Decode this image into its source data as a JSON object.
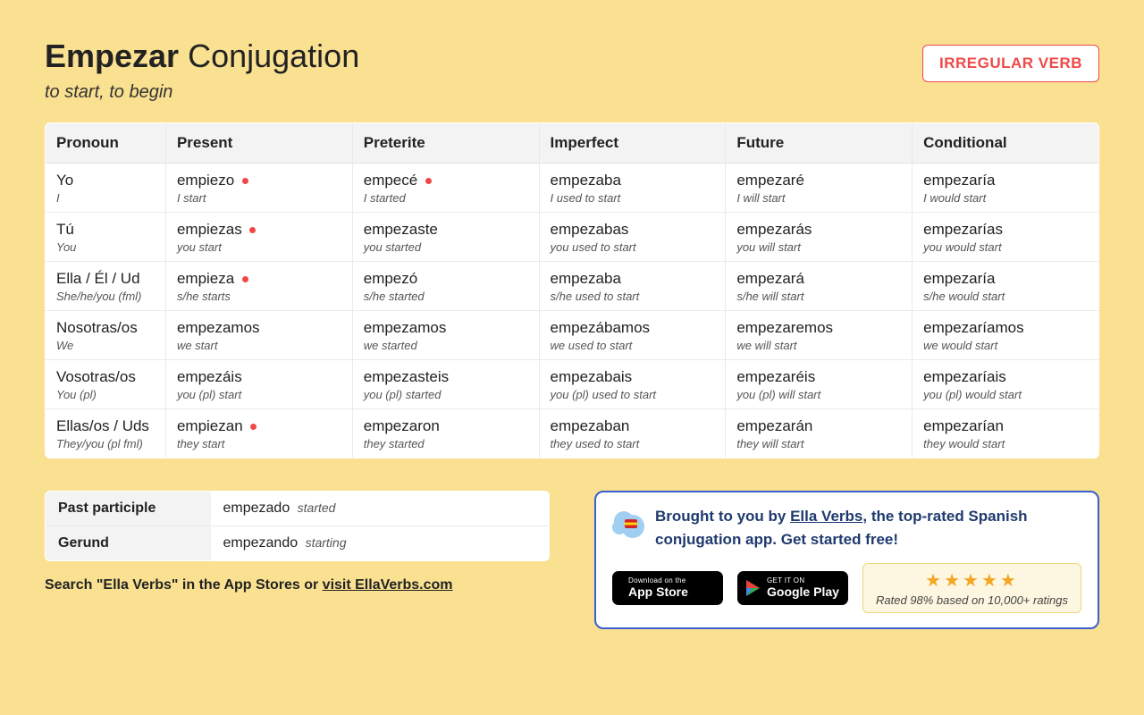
{
  "header": {
    "title_bold": "Empezar",
    "title_rest": " Conjugation",
    "subtitle": "to start, to begin",
    "badge": "IRREGULAR VERB"
  },
  "columns": [
    "Pronoun",
    "Present",
    "Preterite",
    "Imperfect",
    "Future",
    "Conditional"
  ],
  "rows": [
    {
      "pronoun": {
        "form": "Yo",
        "gloss": "I"
      },
      "cells": [
        {
          "form": "empiezo",
          "gloss": "I start",
          "irr": true
        },
        {
          "form": "empecé",
          "gloss": "I started",
          "irr": true
        },
        {
          "form": "empezaba",
          "gloss": "I used to start",
          "irr": false
        },
        {
          "form": "empezaré",
          "gloss": "I will start",
          "irr": false
        },
        {
          "form": "empezaría",
          "gloss": "I would start",
          "irr": false
        }
      ]
    },
    {
      "pronoun": {
        "form": "Tú",
        "gloss": "You"
      },
      "cells": [
        {
          "form": "empiezas",
          "gloss": "you start",
          "irr": true
        },
        {
          "form": "empezaste",
          "gloss": "you started",
          "irr": false
        },
        {
          "form": "empezabas",
          "gloss": "you used to start",
          "irr": false
        },
        {
          "form": "empezarás",
          "gloss": "you will start",
          "irr": false
        },
        {
          "form": "empezarías",
          "gloss": "you would start",
          "irr": false
        }
      ]
    },
    {
      "pronoun": {
        "form": "Ella / Él / Ud",
        "gloss": "She/he/you (fml)"
      },
      "cells": [
        {
          "form": "empieza",
          "gloss": "s/he starts",
          "irr": true
        },
        {
          "form": "empezó",
          "gloss": "s/he started",
          "irr": false
        },
        {
          "form": "empezaba",
          "gloss": "s/he used to start",
          "irr": false
        },
        {
          "form": "empezará",
          "gloss": "s/he will start",
          "irr": false
        },
        {
          "form": "empezaría",
          "gloss": "s/he would start",
          "irr": false
        }
      ]
    },
    {
      "pronoun": {
        "form": "Nosotras/os",
        "gloss": "We"
      },
      "cells": [
        {
          "form": "empezamos",
          "gloss": "we start",
          "irr": false
        },
        {
          "form": "empezamos",
          "gloss": "we started",
          "irr": false
        },
        {
          "form": "empezábamos",
          "gloss": "we used to start",
          "irr": false
        },
        {
          "form": "empezaremos",
          "gloss": "we will start",
          "irr": false
        },
        {
          "form": "empezaríamos",
          "gloss": "we would start",
          "irr": false
        }
      ]
    },
    {
      "pronoun": {
        "form": "Vosotras/os",
        "gloss": "You (pl)"
      },
      "cells": [
        {
          "form": "empezáis",
          "gloss": "you (pl) start",
          "irr": false
        },
        {
          "form": "empezasteis",
          "gloss": "you (pl) started",
          "irr": false
        },
        {
          "form": "empezabais",
          "gloss": "you (pl) used to start",
          "irr": false
        },
        {
          "form": "empezaréis",
          "gloss": "you (pl) will start",
          "irr": false
        },
        {
          "form": "empezaríais",
          "gloss": "you (pl) would start",
          "irr": false
        }
      ]
    },
    {
      "pronoun": {
        "form": "Ellas/os / Uds",
        "gloss": "They/you (pl fml)"
      },
      "cells": [
        {
          "form": "empiezan",
          "gloss": "they start",
          "irr": true
        },
        {
          "form": "empezaron",
          "gloss": "they started",
          "irr": false
        },
        {
          "form": "empezaban",
          "gloss": "they used to start",
          "irr": false
        },
        {
          "form": "empezarán",
          "gloss": "they will start",
          "irr": false
        },
        {
          "form": "empezarían",
          "gloss": "they would start",
          "irr": false
        }
      ]
    }
  ],
  "forms": {
    "past_participle": {
      "label": "Past participle",
      "form": "empezado",
      "gloss": "started"
    },
    "gerund": {
      "label": "Gerund",
      "form": "empezando",
      "gloss": "starting"
    }
  },
  "search_line": {
    "prefix": "Search \"Ella Verbs\" in the App Stores or ",
    "link": "visit EllaVerbs.com"
  },
  "promo": {
    "text_prefix": "Brought to you by ",
    "link": "Ella Verbs",
    "text_suffix": ", the top-rated Spanish conjugation app. Get started free!",
    "app_store": {
      "small": "Download on the",
      "big": "App Store"
    },
    "google_play": {
      "small": "GET IT ON",
      "big": "Google Play"
    },
    "stars": "★★★★★",
    "rating_text": "Rated 98% based on 10,000+ ratings"
  },
  "style": {
    "page_bg": "#fae191",
    "badge_border": "#f04848",
    "badge_text": "#f04848",
    "table_header_bg": "#f3f3f3",
    "table_border": "#e2e2e2",
    "cell_border": "#eaeaea",
    "irr_dot_color": "#f04848",
    "promo_border": "#3a5fcf",
    "promo_text_color": "#1f3a6e",
    "rating_bg": "#fdf6e0",
    "rating_border": "#ecd87f",
    "star_color": "#f5a623"
  }
}
